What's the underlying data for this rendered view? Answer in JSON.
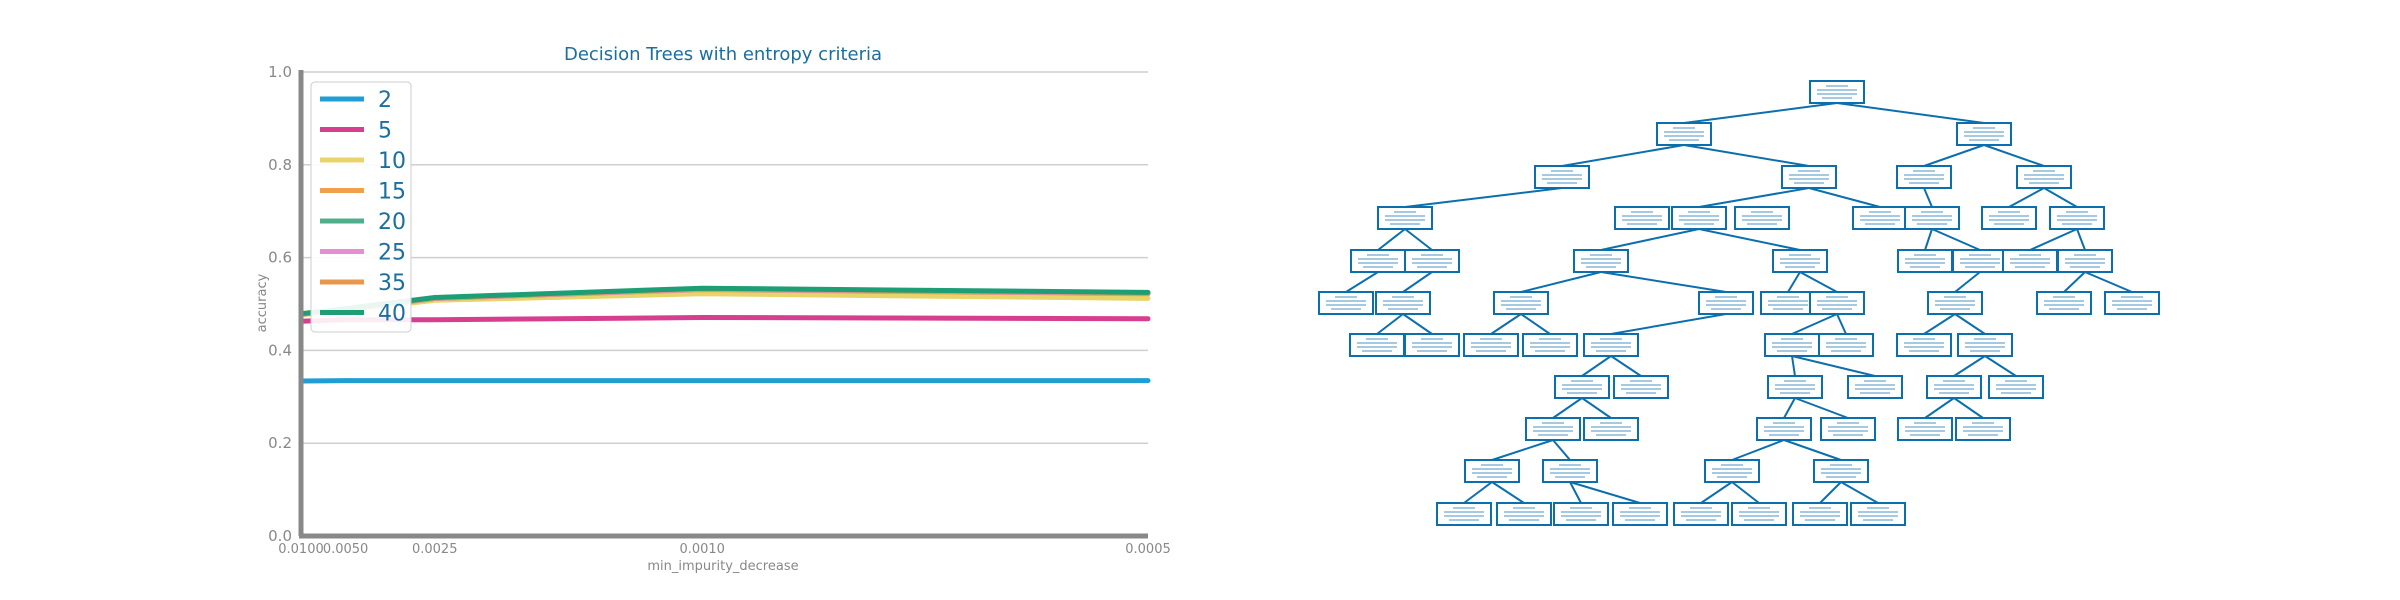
{
  "chart_data": [
    {
      "type": "line",
      "title": "Decision Trees with entropy criteria",
      "xlabel": "min_impurity_decrease",
      "ylabel": "accuracy",
      "xscale": "reciprocal",
      "x": [
        0.01,
        0.005,
        0.0025,
        0.001,
        0.0005
      ],
      "x_tick_labels": [
        "0.0100",
        "0.0050",
        "0.0025",
        "0.0010",
        "0.0005"
      ],
      "ylim": [
        0.0,
        1.0
      ],
      "y_ticks": [
        0.0,
        0.2,
        0.4,
        0.6,
        0.8,
        1.0
      ],
      "y_tick_labels": [
        "0.0",
        "0.2",
        "0.4",
        "0.6",
        "0.8",
        "1.0"
      ],
      "grid": "horizontal",
      "legend_position": "top-left",
      "series": [
        {
          "name": "2",
          "color": "#1f9ed3",
          "values": [
            0.334,
            0.335,
            0.335,
            0.335,
            0.335
          ]
        },
        {
          "name": "5",
          "color": "#d63f8f",
          "values": [
            0.463,
            0.466,
            0.466,
            0.471,
            0.468
          ]
        },
        {
          "name": "10",
          "color": "#e8d46a",
          "values": [
            0.477,
            0.486,
            0.508,
            0.522,
            0.512
          ]
        },
        {
          "name": "15",
          "color": "#f0a04b",
          "values": [
            0.478,
            0.488,
            0.512,
            0.531,
            0.522
          ]
        },
        {
          "name": "20",
          "color": "#4fae8b",
          "values": [
            0.478,
            0.488,
            0.512,
            0.532,
            0.523
          ]
        },
        {
          "name": "25",
          "color": "#e38fd0",
          "values": [
            0.478,
            0.488,
            0.512,
            0.532,
            0.523
          ]
        },
        {
          "name": "35",
          "color": "#e9974c",
          "values": [
            0.478,
            0.489,
            0.513,
            0.533,
            0.524
          ]
        },
        {
          "name": "40",
          "color": "#1e9e74",
          "values": [
            0.479,
            0.49,
            0.514,
            0.534,
            0.525
          ]
        }
      ]
    },
    {
      "type": "tree",
      "node_color": "#0b6fae"
    }
  ]
}
